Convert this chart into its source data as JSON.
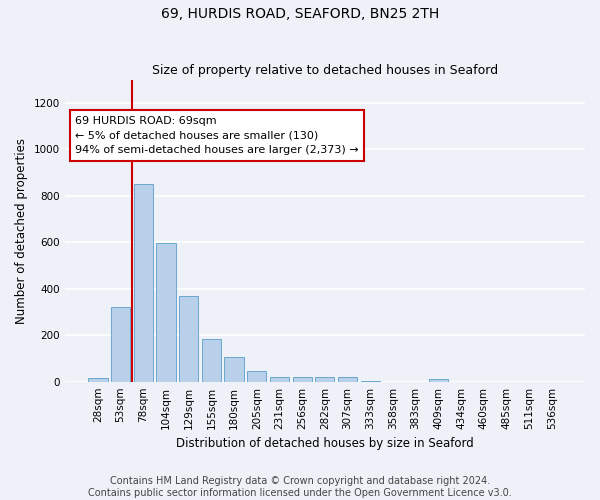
{
  "title1": "69, HURDIS ROAD, SEAFORD, BN25 2TH",
  "title2": "Size of property relative to detached houses in Seaford",
  "xlabel": "Distribution of detached houses by size in Seaford",
  "ylabel": "Number of detached properties",
  "categories": [
    "28sqm",
    "53sqm",
    "78sqm",
    "104sqm",
    "129sqm",
    "155sqm",
    "180sqm",
    "205sqm",
    "231sqm",
    "256sqm",
    "282sqm",
    "307sqm",
    "333sqm",
    "358sqm",
    "383sqm",
    "409sqm",
    "434sqm",
    "460sqm",
    "485sqm",
    "511sqm",
    "536sqm"
  ],
  "values": [
    15,
    320,
    850,
    595,
    370,
    185,
    105,
    48,
    22,
    18,
    18,
    20,
    5,
    0,
    0,
    12,
    0,
    0,
    0,
    0,
    0
  ],
  "bar_color": "#b8d0ea",
  "bar_edge_color": "#5a9fc8",
  "vline_color": "#cc0000",
  "annotation_text": "69 HURDIS ROAD: 69sqm\n← 5% of detached houses are smaller (130)\n94% of semi-detached houses are larger (2,373) →",
  "annotation_box_color": "#ffffff",
  "annotation_box_edge": "#cc0000",
  "ylim": [
    0,
    1300
  ],
  "yticks": [
    0,
    200,
    400,
    600,
    800,
    1000,
    1200
  ],
  "footer1": "Contains HM Land Registry data © Crown copyright and database right 2024.",
  "footer2": "Contains public sector information licensed under the Open Government Licence v3.0.",
  "bg_color": "#eef2f8",
  "plot_bg_color": "#eef2f8",
  "grid_color": "#ffffff",
  "title1_fontsize": 10,
  "title2_fontsize": 9,
  "axis_label_fontsize": 8.5,
  "tick_fontsize": 7.5,
  "footer_fontsize": 7,
  "annotation_fontsize": 8
}
